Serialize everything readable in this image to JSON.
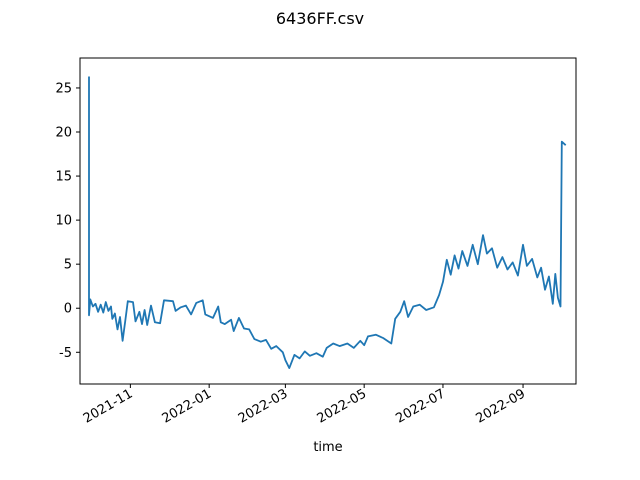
{
  "chart_data": {
    "type": "line",
    "title": "6436FF.csv",
    "xlabel": "time",
    "ylabel": "",
    "x_start": "2021-09-30",
    "x_end": "2022-10-05",
    "xlim": [
      "2021-09-23",
      "2022-10-12"
    ],
    "ylim": [
      -8.6,
      28.4
    ],
    "grid": false,
    "legend": "none",
    "x_ticks": [
      "2021-11",
      "2022-01",
      "2022-03",
      "2022-05",
      "2022-07",
      "2022-09"
    ],
    "y_ticks": [
      -5,
      0,
      5,
      10,
      15,
      20,
      25
    ],
    "series": [
      {
        "color": "#1f77b4",
        "points": [
          [
            "2021-09-30",
            26.3
          ],
          [
            "2021-09-30",
            -0.8
          ],
          [
            "2021-10-01",
            1.0
          ],
          [
            "2021-10-03",
            0.2
          ],
          [
            "2021-10-05",
            0.5
          ],
          [
            "2021-10-07",
            -0.4
          ],
          [
            "2021-10-09",
            0.4
          ],
          [
            "2021-10-11",
            -0.5
          ],
          [
            "2021-10-13",
            0.7
          ],
          [
            "2021-10-15",
            -0.3
          ],
          [
            "2021-10-17",
            0.2
          ],
          [
            "2021-10-18",
            -1.2
          ],
          [
            "2021-10-20",
            -0.6
          ],
          [
            "2021-10-22",
            -2.4
          ],
          [
            "2021-10-24",
            -1.0
          ],
          [
            "2021-10-26",
            -3.7
          ],
          [
            "2021-10-28",
            -1.5
          ],
          [
            "2021-10-30",
            0.8
          ],
          [
            "2021-11-03",
            0.7
          ],
          [
            "2021-11-05",
            -1.5
          ],
          [
            "2021-11-08",
            -0.4
          ],
          [
            "2021-11-10",
            -1.8
          ],
          [
            "2021-11-12",
            -0.2
          ],
          [
            "2021-11-14",
            -1.9
          ],
          [
            "2021-11-17",
            0.3
          ],
          [
            "2021-11-20",
            -1.6
          ],
          [
            "2021-11-24",
            -1.7
          ],
          [
            "2021-11-27",
            0.9
          ],
          [
            "2021-12-04",
            0.8
          ],
          [
            "2021-12-06",
            -0.3
          ],
          [
            "2021-12-10",
            0.1
          ],
          [
            "2021-12-14",
            0.3
          ],
          [
            "2021-12-18",
            -0.7
          ],
          [
            "2021-12-22",
            0.6
          ],
          [
            "2021-12-27",
            0.9
          ],
          [
            "2021-12-29",
            -0.7
          ],
          [
            "2022-01-04",
            -1.1
          ],
          [
            "2022-01-08",
            0.2
          ],
          [
            "2022-01-10",
            -1.6
          ],
          [
            "2022-01-13",
            -1.8
          ],
          [
            "2022-01-18",
            -1.3
          ],
          [
            "2022-01-20",
            -2.6
          ],
          [
            "2022-01-24",
            -1.1
          ],
          [
            "2022-01-28",
            -2.3
          ],
          [
            "2022-02-01",
            -2.4
          ],
          [
            "2022-02-05",
            -3.5
          ],
          [
            "2022-02-10",
            -3.8
          ],
          [
            "2022-02-14",
            -3.6
          ],
          [
            "2022-02-18",
            -4.6
          ],
          [
            "2022-02-22",
            -4.3
          ],
          [
            "2022-02-27",
            -5.0
          ],
          [
            "2022-03-01",
            -5.9
          ],
          [
            "2022-03-04",
            -6.8
          ],
          [
            "2022-03-08",
            -5.3
          ],
          [
            "2022-03-12",
            -5.7
          ],
          [
            "2022-03-16",
            -4.9
          ],
          [
            "2022-03-20",
            -5.4
          ],
          [
            "2022-03-25",
            -5.1
          ],
          [
            "2022-03-30",
            -5.5
          ],
          [
            "2022-04-02",
            -4.5
          ],
          [
            "2022-04-07",
            -4.0
          ],
          [
            "2022-04-12",
            -4.3
          ],
          [
            "2022-04-18",
            -4.0
          ],
          [
            "2022-04-23",
            -4.5
          ],
          [
            "2022-04-28",
            -3.7
          ],
          [
            "2022-05-01",
            -4.2
          ],
          [
            "2022-05-04",
            -3.2
          ],
          [
            "2022-05-10",
            -3.0
          ],
          [
            "2022-05-16",
            -3.4
          ],
          [
            "2022-05-22",
            -4.0
          ],
          [
            "2022-05-25",
            -1.2
          ],
          [
            "2022-05-29",
            -0.4
          ],
          [
            "2022-06-01",
            0.8
          ],
          [
            "2022-06-04",
            -1.0
          ],
          [
            "2022-06-08",
            0.2
          ],
          [
            "2022-06-13",
            0.4
          ],
          [
            "2022-06-18",
            -0.2
          ],
          [
            "2022-06-24",
            0.1
          ],
          [
            "2022-06-28",
            1.5
          ],
          [
            "2022-07-01",
            3.0
          ],
          [
            "2022-07-04",
            5.5
          ],
          [
            "2022-07-07",
            3.8
          ],
          [
            "2022-07-10",
            6.0
          ],
          [
            "2022-07-13",
            4.5
          ],
          [
            "2022-07-16",
            6.5
          ],
          [
            "2022-07-20",
            4.8
          ],
          [
            "2022-07-24",
            7.2
          ],
          [
            "2022-07-28",
            5.0
          ],
          [
            "2022-08-01",
            8.3
          ],
          [
            "2022-08-04",
            6.2
          ],
          [
            "2022-08-08",
            6.8
          ],
          [
            "2022-08-12",
            4.6
          ],
          [
            "2022-08-16",
            5.8
          ],
          [
            "2022-08-20",
            4.4
          ],
          [
            "2022-08-24",
            5.2
          ],
          [
            "2022-08-28",
            3.7
          ],
          [
            "2022-09-01",
            7.2
          ],
          [
            "2022-09-04",
            4.8
          ],
          [
            "2022-09-08",
            5.6
          ],
          [
            "2022-09-12",
            3.5
          ],
          [
            "2022-09-15",
            4.6
          ],
          [
            "2022-09-18",
            2.1
          ],
          [
            "2022-09-21",
            3.6
          ],
          [
            "2022-09-24",
            0.5
          ],
          [
            "2022-09-26",
            3.9
          ],
          [
            "2022-09-28",
            1.2
          ],
          [
            "2022-09-30",
            0.2
          ],
          [
            "2022-10-01",
            18.9
          ],
          [
            "2022-10-04",
            18.5
          ]
        ]
      }
    ]
  }
}
